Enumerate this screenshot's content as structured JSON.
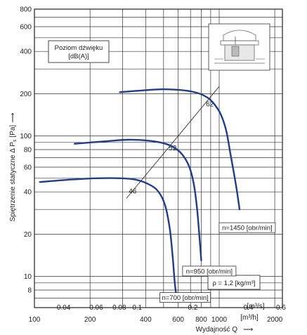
{
  "chart_data": {
    "type": "line",
    "xscale": "log",
    "yscale": "log",
    "ylabel": "Spiętrzenie statyczne Δ P",
    "ylabel_sub": "s",
    "ylabel_unit": "[Pa]",
    "ylabel_arrow": "⟶",
    "xlabel": "Wydajność Q",
    "xlabel_arrow": "⟶",
    "x_unit_top": "[m³/s]",
    "x_unit_bottom": "[m³/h]",
    "ylim": [
      6,
      800
    ],
    "xlim_m3h": [
      100,
      2200
    ],
    "y_ticks": [
      8,
      10,
      20,
      40,
      60,
      80,
      100,
      200,
      400,
      600,
      800
    ],
    "x_ticks_m3h": [
      100,
      200,
      400,
      600,
      800,
      1000,
      2000
    ],
    "x_ticks_m3s": [
      {
        "value": 0.04,
        "label": "0.04"
      },
      {
        "value": 0.06,
        "label": "0.06"
      },
      {
        "value": 0.08,
        "label": "0.08"
      },
      {
        "value": 0.1,
        "label": "0.1"
      },
      {
        "value": 0.2,
        "label": "0.2"
      },
      {
        "value": 0.4,
        "label": "0.4"
      },
      {
        "value": 0.6,
        "label": "0.6"
      }
    ],
    "grid": true,
    "series": [
      {
        "name": "n=1450 [obr/min]",
        "color": "#1f3d8c",
        "points": [
          [
            290,
            205
          ],
          [
            400,
            212
          ],
          [
            500,
            215
          ],
          [
            600,
            213
          ],
          [
            700,
            208
          ],
          [
            800,
            198
          ],
          [
            900,
            180
          ],
          [
            1000,
            150
          ],
          [
            1060,
            125
          ],
          [
            1100,
            105
          ],
          [
            1150,
            75
          ],
          [
            1200,
            55
          ],
          [
            1250,
            40
          ],
          [
            1290,
            30
          ]
        ]
      },
      {
        "name": "n=950 [obr/min]",
        "color": "#1f3d8c",
        "points": [
          [
            165,
            88
          ],
          [
            250,
            92
          ],
          [
            320,
            94
          ],
          [
            400,
            93
          ],
          [
            480,
            90
          ],
          [
            560,
            84
          ],
          [
            630,
            74
          ],
          [
            690,
            60
          ],
          [
            730,
            45
          ],
          [
            760,
            30
          ],
          [
            780,
            20
          ],
          [
            800,
            13
          ]
        ]
      },
      {
        "name": "n=700 [obr/min]",
        "color": "#1f3d8c",
        "points": [
          [
            107,
            47
          ],
          [
            160,
            49
          ],
          [
            220,
            50
          ],
          [
            290,
            50
          ],
          [
            350,
            49
          ],
          [
            420,
            45
          ],
          [
            470,
            40
          ],
          [
            510,
            32
          ],
          [
            540,
            22
          ],
          [
            560,
            14
          ],
          [
            575,
            9
          ],
          [
            585,
            7.5
          ]
        ]
      }
    ],
    "sound_level_line": {
      "points": [
        [
          315,
          36
        ],
        [
          1000,
          225
        ]
      ],
      "labels": [
        {
          "text": "46",
          "x": 340,
          "y": 39
        },
        {
          "text": "52",
          "x": 560,
          "y": 79
        },
        {
          "text": "62",
          "x": 890,
          "y": 162
        }
      ]
    },
    "annotations": {
      "sound_box": [
        "Poziom dźwięku",
        "[dB(A)]"
      ],
      "density_box": "ρ = 1,2 [kg/m³]"
    }
  }
}
